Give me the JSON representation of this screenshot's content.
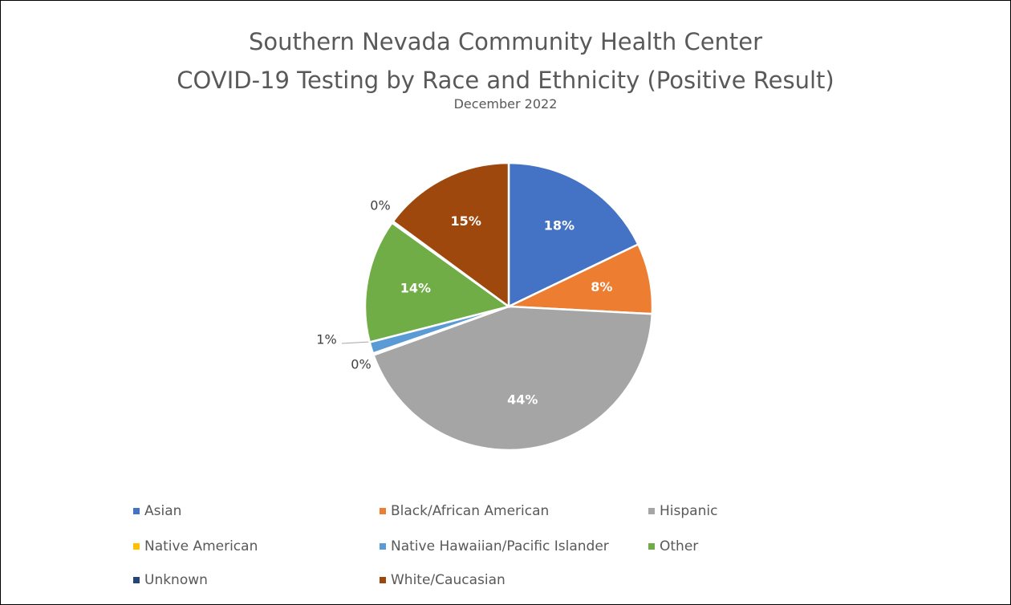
{
  "chart_data": {
    "type": "pie",
    "title": "Southern Nevada Community Health Center",
    "title_line2": "COVID-19 Testing by Race and Ethnicity (Positive Result)",
    "subtitle": "December 2022",
    "legend_position": "bottom",
    "slices": [
      {
        "name": "Asian",
        "value": 18,
        "label": "18%",
        "color": "#4472C4"
      },
      {
        "name": "Black/African American",
        "value": 8,
        "label": "8%",
        "color": "#ED7D31"
      },
      {
        "name": "Hispanic",
        "value": 44,
        "label": "44%",
        "color": "#A5A5A5"
      },
      {
        "name": "Native American",
        "value": 0.2,
        "label": "0%",
        "color": "#FFC000"
      },
      {
        "name": "Native Hawaiian/Pacific Islander",
        "value": 1.3,
        "label": "1%",
        "color": "#5B9BD5"
      },
      {
        "name": "Other",
        "value": 14,
        "label": "14%",
        "color": "#70AD47"
      },
      {
        "name": "Unknown",
        "value": 0.2,
        "label": "0%",
        "color": "#264478"
      },
      {
        "name": "White/Caucasian",
        "value": 15,
        "label": "15%",
        "color": "#9E480E"
      }
    ]
  }
}
